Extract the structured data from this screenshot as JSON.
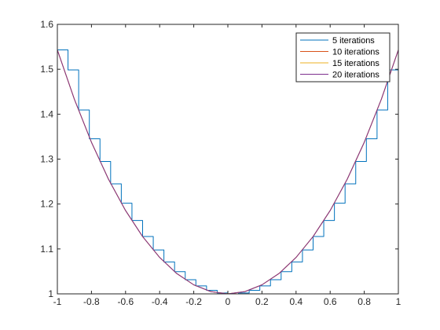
{
  "chart_data": {
    "type": "line",
    "title": "",
    "xlabel": "",
    "ylabel": "",
    "xlim": [
      -1,
      1
    ],
    "ylim": [
      1,
      1.6
    ],
    "x_ticks": [
      -1,
      -0.8,
      -0.6,
      -0.4,
      -0.2,
      0,
      0.2,
      0.4,
      0.6,
      0.8,
      1
    ],
    "x_tick_labels": [
      "-1",
      "-0.8",
      "-0.6",
      "-0.4",
      "-0.2",
      "0",
      "0.2",
      "0.4",
      "0.6",
      "0.8",
      "1"
    ],
    "y_ticks": [
      1,
      1.1,
      1.2,
      1.3,
      1.4,
      1.5,
      1.6
    ],
    "y_tick_labels": [
      "1",
      "1.1",
      "1.2",
      "1.3",
      "1.4",
      "1.5",
      "1.6"
    ],
    "grid": false,
    "box": true,
    "legend_position": "top-right",
    "series": [
      {
        "name": "5 iterations",
        "color": "#0072BD",
        "style": "staircase",
        "x": [
          -1,
          -0.9375,
          -0.875,
          -0.8125,
          -0.75,
          -0.6875,
          -0.625,
          -0.5625,
          -0.5,
          -0.4375,
          -0.375,
          -0.3125,
          -0.25,
          -0.1875,
          -0.125,
          -0.0625,
          0,
          0.0625,
          0.125,
          0.1875,
          0.25,
          0.3125,
          0.375,
          0.4375,
          0.5,
          0.5625,
          0.625,
          0.6875,
          0.75,
          0.8125,
          0.875,
          0.9375,
          1
        ],
        "y": [
          1.5431,
          1.4985,
          1.4093,
          1.3452,
          1.2947,
          1.2448,
          1.2018,
          1.1634,
          1.1276,
          1.0977,
          1.0711,
          1.0495,
          1.0315,
          1.0177,
          1.0078,
          1.002,
          1,
          1.002,
          1.0078,
          1.0177,
          1.0315,
          1.0495,
          1.0711,
          1.0977,
          1.1276,
          1.1634,
          1.2018,
          1.2448,
          1.2947,
          1.3452,
          1.4093,
          1.4985,
          1.5431
        ]
      },
      {
        "name": "10 iterations",
        "color": "#D95319",
        "style": "smooth",
        "x": [
          -1,
          -0.9,
          -0.8,
          -0.7,
          -0.6,
          -0.5,
          -0.4,
          -0.3,
          -0.2,
          -0.1,
          0,
          0.1,
          0.2,
          0.3,
          0.4,
          0.5,
          0.6,
          0.7,
          0.8,
          0.9,
          1
        ],
        "y": [
          1.5431,
          1.4331,
          1.3374,
          1.2552,
          1.1855,
          1.1276,
          1.0811,
          1.0453,
          1.0201,
          1.005,
          1,
          1.005,
          1.0201,
          1.0453,
          1.0811,
          1.1276,
          1.1855,
          1.2552,
          1.3374,
          1.4331,
          1.5431
        ]
      },
      {
        "name": "15 iterations",
        "color": "#EDB120",
        "style": "smooth",
        "x": [
          -1,
          -0.9,
          -0.8,
          -0.7,
          -0.6,
          -0.5,
          -0.4,
          -0.3,
          -0.2,
          -0.1,
          0,
          0.1,
          0.2,
          0.3,
          0.4,
          0.5,
          0.6,
          0.7,
          0.8,
          0.9,
          1
        ],
        "y": [
          1.5431,
          1.4331,
          1.3374,
          1.2552,
          1.1855,
          1.1276,
          1.0811,
          1.0453,
          1.0201,
          1.005,
          1,
          1.005,
          1.0201,
          1.0453,
          1.0811,
          1.1276,
          1.1855,
          1.2552,
          1.3374,
          1.4331,
          1.5431
        ]
      },
      {
        "name": "20 iterations",
        "color": "#7E2F8E",
        "style": "smooth",
        "x": [
          -1,
          -0.9,
          -0.8,
          -0.7,
          -0.6,
          -0.5,
          -0.4,
          -0.3,
          -0.2,
          -0.1,
          0,
          0.1,
          0.2,
          0.3,
          0.4,
          0.5,
          0.6,
          0.7,
          0.8,
          0.9,
          1
        ],
        "y": [
          1.5431,
          1.4331,
          1.3374,
          1.2552,
          1.1855,
          1.1276,
          1.0811,
          1.0453,
          1.0201,
          1.005,
          1,
          1.005,
          1.0201,
          1.0453,
          1.0811,
          1.1276,
          1.1855,
          1.2552,
          1.3374,
          1.4331,
          1.5431
        ]
      }
    ]
  }
}
